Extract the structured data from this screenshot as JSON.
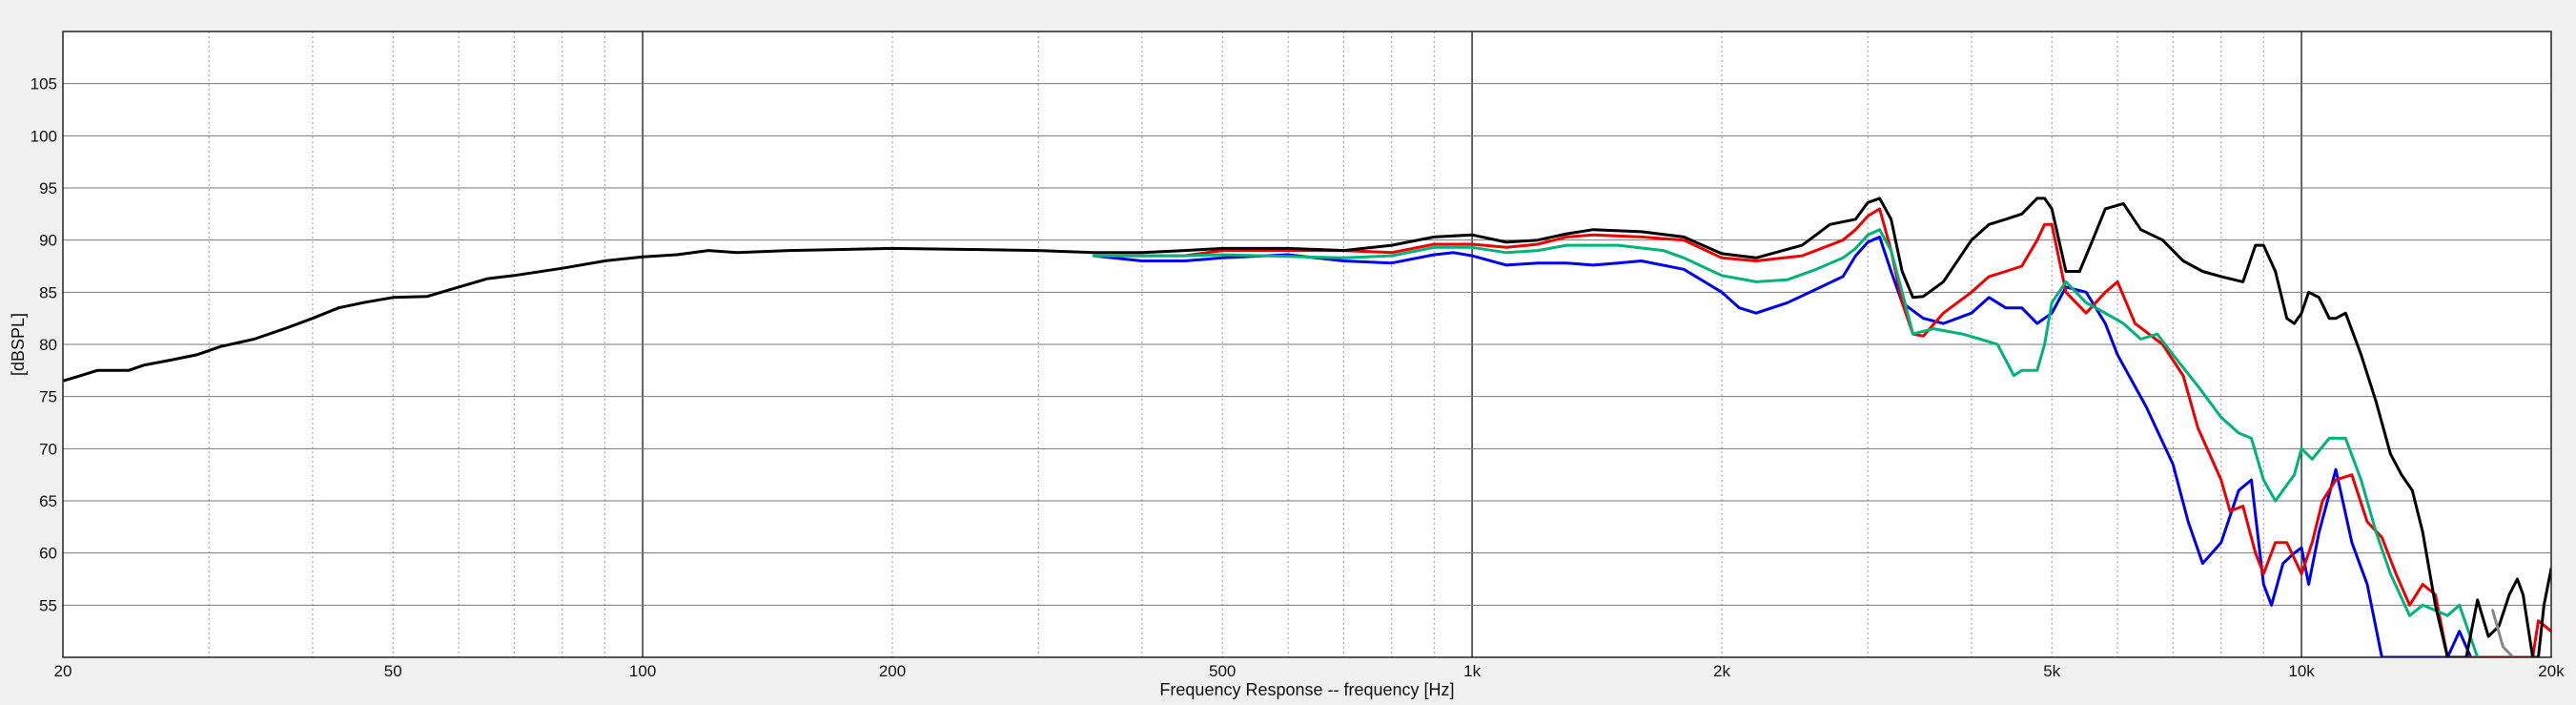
{
  "chart_data": {
    "type": "line",
    "title": "",
    "xlabel": "Frequency Response -- frequency [Hz]",
    "ylabel": "[dBSPL]",
    "x_scale": "log",
    "xlim": [
      20,
      20000
    ],
    "ylim": [
      50,
      110
    ],
    "grid": true,
    "x_major_ticks": [
      {
        "value": 20,
        "label": "20"
      },
      {
        "value": 50,
        "label": "50"
      },
      {
        "value": 100,
        "label": "100"
      },
      {
        "value": 200,
        "label": "200"
      },
      {
        "value": 500,
        "label": "500"
      },
      {
        "value": 1000,
        "label": "1k"
      },
      {
        "value": 2000,
        "label": "2k"
      },
      {
        "value": 5000,
        "label": "5k"
      },
      {
        "value": 10000,
        "label": "10k"
      },
      {
        "value": 20000,
        "label": "20k"
      }
    ],
    "y_ticks": [
      55,
      60,
      65,
      70,
      75,
      80,
      85,
      90,
      95,
      100,
      105
    ],
    "series": [
      {
        "color": "#0000ee",
        "points": [
          [
            350,
            88.5
          ],
          [
            400,
            88
          ],
          [
            450,
            88
          ],
          [
            500,
            88.3
          ],
          [
            600,
            88.6
          ],
          [
            700,
            88
          ],
          [
            800,
            87.8
          ],
          [
            900,
            88.6
          ],
          [
            950,
            88.8
          ],
          [
            1000,
            88.5
          ],
          [
            1100,
            87.6
          ],
          [
            1200,
            87.8
          ],
          [
            1300,
            87.8
          ],
          [
            1400,
            87.6
          ],
          [
            1500,
            87.8
          ],
          [
            1600,
            88
          ],
          [
            1800,
            87.2
          ],
          [
            2000,
            85
          ],
          [
            2100,
            83.5
          ],
          [
            2200,
            83
          ],
          [
            2400,
            84
          ],
          [
            2600,
            85.3
          ],
          [
            2800,
            86.5
          ],
          [
            2900,
            88.5
          ],
          [
            3000,
            89.8
          ],
          [
            3100,
            90.3
          ],
          [
            3200,
            87
          ],
          [
            3300,
            84
          ],
          [
            3500,
            82.5
          ],
          [
            3700,
            82
          ],
          [
            4000,
            83
          ],
          [
            4200,
            84.5
          ],
          [
            4400,
            83.5
          ],
          [
            4600,
            83.5
          ],
          [
            4800,
            82
          ],
          [
            5000,
            83
          ],
          [
            5200,
            85.5
          ],
          [
            5500,
            85
          ],
          [
            5800,
            82
          ],
          [
            6000,
            79
          ],
          [
            6500,
            74
          ],
          [
            7000,
            68.5
          ],
          [
            7300,
            63
          ],
          [
            7600,
            59
          ],
          [
            8000,
            61
          ],
          [
            8400,
            66
          ],
          [
            8700,
            67
          ],
          [
            9000,
            57
          ],
          [
            9200,
            55
          ],
          [
            9500,
            59
          ],
          [
            9800,
            60
          ],
          [
            10000,
            60.5
          ],
          [
            10200,
            57
          ],
          [
            10500,
            62
          ],
          [
            11000,
            68
          ],
          [
            11500,
            61
          ],
          [
            12000,
            57
          ],
          [
            12500,
            50
          ],
          [
            15000,
            50
          ],
          [
            15500,
            52.5
          ],
          [
            16000,
            50
          ]
        ]
      },
      {
        "color": "#ee0000",
        "points": [
          [
            350,
            88.5
          ],
          [
            450,
            88.5
          ],
          [
            500,
            89
          ],
          [
            700,
            89
          ],
          [
            800,
            88.8
          ],
          [
            900,
            89.6
          ],
          [
            1000,
            89.6
          ],
          [
            1100,
            89.3
          ],
          [
            1200,
            89.6
          ],
          [
            1300,
            90.3
          ],
          [
            1400,
            90.5
          ],
          [
            1600,
            90.3
          ],
          [
            1800,
            90
          ],
          [
            2000,
            88.3
          ],
          [
            2200,
            88
          ],
          [
            2500,
            88.5
          ],
          [
            2800,
            90
          ],
          [
            2900,
            91
          ],
          [
            3000,
            92.3
          ],
          [
            3100,
            93
          ],
          [
            3200,
            89
          ],
          [
            3300,
            84
          ],
          [
            3400,
            81
          ],
          [
            3500,
            80.8
          ],
          [
            3700,
            83
          ],
          [
            4000,
            85
          ],
          [
            4200,
            86.5
          ],
          [
            4400,
            87
          ],
          [
            4600,
            87.5
          ],
          [
            4800,
            90
          ],
          [
            4900,
            91.5
          ],
          [
            5000,
            91.5
          ],
          [
            5200,
            85
          ],
          [
            5500,
            83
          ],
          [
            5800,
            85
          ],
          [
            6000,
            86
          ],
          [
            6300,
            82
          ],
          [
            6800,
            80
          ],
          [
            7200,
            77
          ],
          [
            7500,
            72
          ],
          [
            8000,
            67
          ],
          [
            8200,
            64
          ],
          [
            8500,
            64.5
          ],
          [
            8800,
            60
          ],
          [
            9000,
            58
          ],
          [
            9300,
            61
          ],
          [
            9600,
            61
          ],
          [
            10000,
            58
          ],
          [
            10300,
            61
          ],
          [
            10600,
            65
          ],
          [
            11000,
            67
          ],
          [
            11500,
            67.5
          ],
          [
            12000,
            63
          ],
          [
            12500,
            61.5
          ],
          [
            13000,
            58
          ],
          [
            13500,
            55
          ],
          [
            14000,
            57
          ],
          [
            14500,
            56
          ],
          [
            15000,
            50
          ],
          [
            19000,
            50
          ],
          [
            19300,
            53.5
          ],
          [
            20000,
            52.5
          ]
        ]
      },
      {
        "color": "#00b37a",
        "points": [
          [
            350,
            88.5
          ],
          [
            450,
            88.5
          ],
          [
            500,
            88.6
          ],
          [
            700,
            88.3
          ],
          [
            800,
            88.5
          ],
          [
            900,
            89.3
          ],
          [
            1000,
            89.3
          ],
          [
            1100,
            88.8
          ],
          [
            1200,
            89
          ],
          [
            1300,
            89.5
          ],
          [
            1500,
            89.5
          ],
          [
            1700,
            89
          ],
          [
            1800,
            88.3
          ],
          [
            2000,
            86.6
          ],
          [
            2200,
            86
          ],
          [
            2400,
            86.2
          ],
          [
            2600,
            87.2
          ],
          [
            2800,
            88.3
          ],
          [
            2900,
            89.2
          ],
          [
            3000,
            90.5
          ],
          [
            3100,
            91
          ],
          [
            3200,
            89
          ],
          [
            3300,
            85
          ],
          [
            3400,
            81
          ],
          [
            3600,
            81.5
          ],
          [
            3900,
            81
          ],
          [
            4100,
            80.5
          ],
          [
            4300,
            80
          ],
          [
            4500,
            77
          ],
          [
            4600,
            77.5
          ],
          [
            4800,
            77.5
          ],
          [
            4900,
            80
          ],
          [
            5000,
            84
          ],
          [
            5200,
            86
          ],
          [
            5500,
            84
          ],
          [
            5800,
            83
          ],
          [
            6100,
            82
          ],
          [
            6400,
            80.5
          ],
          [
            6700,
            81
          ],
          [
            7000,
            79
          ],
          [
            7500,
            76
          ],
          [
            8000,
            73
          ],
          [
            8400,
            71.5
          ],
          [
            8700,
            71
          ],
          [
            9000,
            67
          ],
          [
            9300,
            65
          ],
          [
            9800,
            67.5
          ],
          [
            10000,
            70
          ],
          [
            10300,
            69
          ],
          [
            10800,
            71
          ],
          [
            11300,
            71
          ],
          [
            11800,
            67
          ],
          [
            12300,
            62
          ],
          [
            12800,
            58
          ],
          [
            13500,
            54
          ],
          [
            14000,
            55
          ],
          [
            15000,
            54
          ],
          [
            15500,
            55
          ],
          [
            16300,
            50
          ]
        ]
      },
      {
        "color": "#000000",
        "points": [
          [
            20,
            76.5
          ],
          [
            21,
            77
          ],
          [
            22,
            77.5
          ],
          [
            24,
            77.5
          ],
          [
            25,
            78
          ],
          [
            27,
            78.5
          ],
          [
            29,
            79
          ],
          [
            31,
            79.8
          ],
          [
            34,
            80.5
          ],
          [
            37,
            81.5
          ],
          [
            40,
            82.5
          ],
          [
            43,
            83.5
          ],
          [
            46,
            84
          ],
          [
            50,
            84.5
          ],
          [
            55,
            84.6
          ],
          [
            60,
            85.5
          ],
          [
            65,
            86.3
          ],
          [
            70,
            86.6
          ],
          [
            80,
            87.3
          ],
          [
            90,
            88
          ],
          [
            100,
            88.4
          ],
          [
            110,
            88.6
          ],
          [
            120,
            89
          ],
          [
            130,
            88.8
          ],
          [
            150,
            89
          ],
          [
            200,
            89.2
          ],
          [
            250,
            89.1
          ],
          [
            300,
            89
          ],
          [
            350,
            88.8
          ],
          [
            400,
            88.8
          ],
          [
            450,
            89
          ],
          [
            500,
            89.2
          ],
          [
            600,
            89.2
          ],
          [
            700,
            89
          ],
          [
            800,
            89.5
          ],
          [
            900,
            90.3
          ],
          [
            1000,
            90.5
          ],
          [
            1100,
            89.8
          ],
          [
            1200,
            90
          ],
          [
            1300,
            90.6
          ],
          [
            1400,
            91
          ],
          [
            1600,
            90.8
          ],
          [
            1800,
            90.3
          ],
          [
            2000,
            88.7
          ],
          [
            2200,
            88.3
          ],
          [
            2500,
            89.5
          ],
          [
            2700,
            91.5
          ],
          [
            2900,
            92
          ],
          [
            3000,
            93.6
          ],
          [
            3100,
            94
          ],
          [
            3200,
            92
          ],
          [
            3300,
            87
          ],
          [
            3400,
            84.5
          ],
          [
            3500,
            84.6
          ],
          [
            3700,
            86
          ],
          [
            4000,
            90
          ],
          [
            4200,
            91.5
          ],
          [
            4400,
            92
          ],
          [
            4600,
            92.5
          ],
          [
            4800,
            94
          ],
          [
            4900,
            94
          ],
          [
            5000,
            93
          ],
          [
            5200,
            87
          ],
          [
            5400,
            87
          ],
          [
            5600,
            90
          ],
          [
            5800,
            93
          ],
          [
            6100,
            93.5
          ],
          [
            6400,
            91
          ],
          [
            6800,
            90
          ],
          [
            7200,
            88
          ],
          [
            7600,
            87
          ],
          [
            8000,
            86.5
          ],
          [
            8500,
            86
          ],
          [
            8800,
            89.5
          ],
          [
            9000,
            89.5
          ],
          [
            9300,
            87
          ],
          [
            9600,
            82.5
          ],
          [
            9800,
            82
          ],
          [
            10000,
            83
          ],
          [
            10200,
            85
          ],
          [
            10500,
            84.5
          ],
          [
            10800,
            82.5
          ],
          [
            11000,
            82.5
          ],
          [
            11300,
            83
          ],
          [
            11800,
            79
          ],
          [
            12300,
            74.5
          ],
          [
            12800,
            69.5
          ],
          [
            13200,
            67.5
          ],
          [
            13600,
            66
          ],
          [
            14000,
            62
          ],
          [
            14500,
            55
          ],
          [
            15000,
            50
          ],
          [
            15800,
            50
          ],
          [
            16300,
            55.5
          ],
          [
            16800,
            52
          ],
          [
            17300,
            53
          ],
          [
            17800,
            56
          ],
          [
            18200,
            57.5
          ],
          [
            18500,
            56
          ],
          [
            19000,
            50
          ],
          [
            19300,
            50
          ],
          [
            19600,
            55
          ],
          [
            20000,
            58.5
          ]
        ]
      },
      {
        "color": "#888888",
        "points": [
          [
            17000,
            54.5
          ],
          [
            17500,
            51
          ],
          [
            18000,
            50
          ]
        ]
      }
    ]
  }
}
